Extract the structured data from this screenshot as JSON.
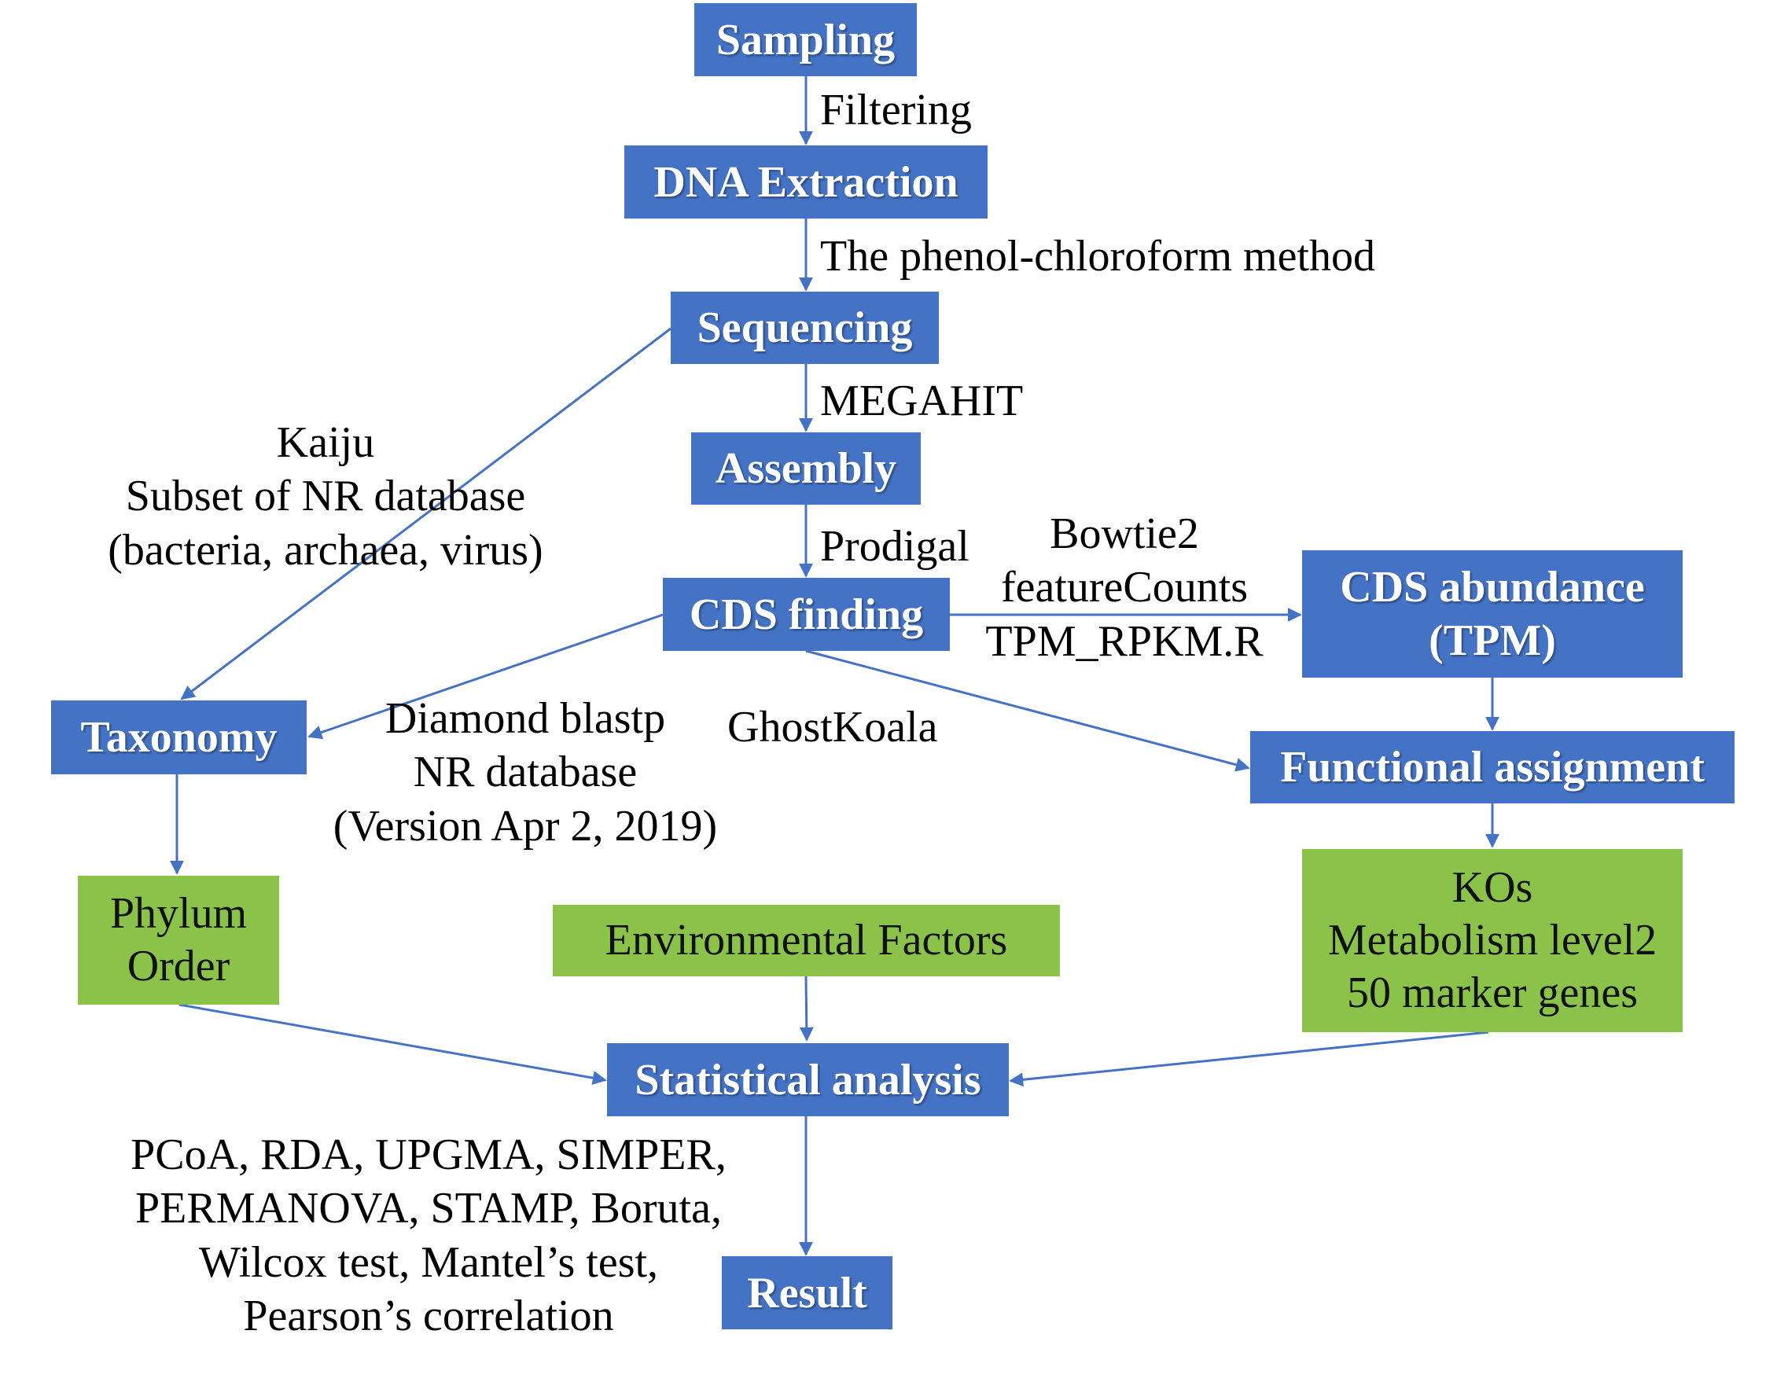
{
  "nodes": {
    "sampling": "Sampling",
    "dna_extraction": "DNA Extraction",
    "sequencing": "Sequencing",
    "assembly": "Assembly",
    "cds_finding": "CDS finding",
    "cds_abundance": [
      "CDS abundance",
      "(TPM)"
    ],
    "taxonomy": "Taxonomy",
    "functional_assignment": "Functional assignment",
    "phylum_order": [
      "Phylum",
      "Order"
    ],
    "environmental_factors": "Environmental Factors",
    "kos": [
      "KOs",
      "Metabolism level2",
      "50 marker genes"
    ],
    "statistical_analysis": "Statistical analysis",
    "result": "Result"
  },
  "edge_labels": {
    "filtering": "Filtering",
    "phenol": "The phenol-chloroform method",
    "megahit": "MEGAHIT",
    "prodigal": "Prodigal",
    "kaiju": [
      "Kaiju",
      "Subset of NR database",
      "(bacteria, archaea, virus)"
    ],
    "bowtie": [
      "Bowtie2",
      "featureCounts",
      "TPM_RPKM.R"
    ],
    "diamond": [
      "Diamond blastp",
      "NR database",
      "(Version Apr 2, 2019)"
    ],
    "ghostkoala": "GhostKoala",
    "stats_methods": [
      "PCoA, RDA, UPGMA, SIMPER,",
      "PERMANOVA, STAMP, Boruta,",
      "Wilcox test, Mantel’s test,",
      "Pearson’s correlation"
    ]
  },
  "colors": {
    "process": "#4472c4",
    "data": "#8bc34a",
    "arrow": "#4472c4"
  }
}
